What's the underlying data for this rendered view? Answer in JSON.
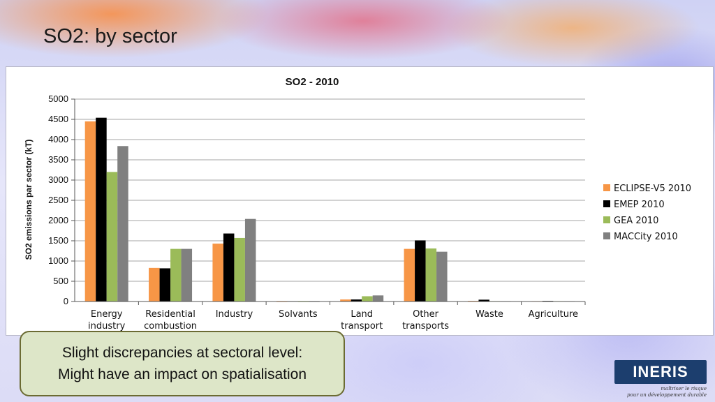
{
  "slide": {
    "title": "SO2: by sector",
    "note_line1": "Slight discrepancies at sectoral level:",
    "note_line2": "Might have an impact on spatialisation",
    "logo_text": "INERIS",
    "logo_tagline_line1": "maîtriser le risque",
    "logo_tagline_line2": "pour un développement durable"
  },
  "colors": {
    "eclipse": "#f79646",
    "emep": "#000000",
    "gea": "#9bbb59",
    "maccity": "#808080",
    "gridline": "#a6a6a6",
    "logo_bg": "#1c3e6e"
  },
  "chart_data": {
    "type": "bar",
    "title": "SO2 - 2010",
    "xlabel": "",
    "ylabel": "SO2 emissions par sector (kT)",
    "ylim": [
      0,
      5000
    ],
    "yticks": [
      0,
      500,
      1000,
      1500,
      2000,
      2500,
      3000,
      3500,
      4000,
      4500,
      5000
    ],
    "grid": true,
    "legend_position": "right",
    "categories": [
      [
        "Energy",
        "industry"
      ],
      [
        "Residential",
        "combustion"
      ],
      [
        "Industry"
      ],
      [
        "Solvants"
      ],
      [
        "Land",
        "transport"
      ],
      [
        "Other",
        "transports"
      ],
      [
        "Waste"
      ],
      [
        "Agriculture"
      ]
    ],
    "series": [
      {
        "name": "ECLIPSE-V5 2010",
        "color_key": "eclipse",
        "values": [
          4450,
          830,
          1430,
          0,
          50,
          1300,
          15,
          10
        ]
      },
      {
        "name": "EMEP 2010",
        "color_key": "emep",
        "values": [
          4540,
          820,
          1680,
          10,
          50,
          1510,
          45,
          15
        ]
      },
      {
        "name": "GEA 2010",
        "color_key": "gea",
        "values": [
          3200,
          1300,
          1570,
          0,
          130,
          1310,
          10,
          10
        ]
      },
      {
        "name": "MACCity 2010",
        "color_key": "maccity",
        "values": [
          3840,
          1300,
          2040,
          0,
          150,
          1230,
          10,
          10
        ]
      }
    ]
  }
}
